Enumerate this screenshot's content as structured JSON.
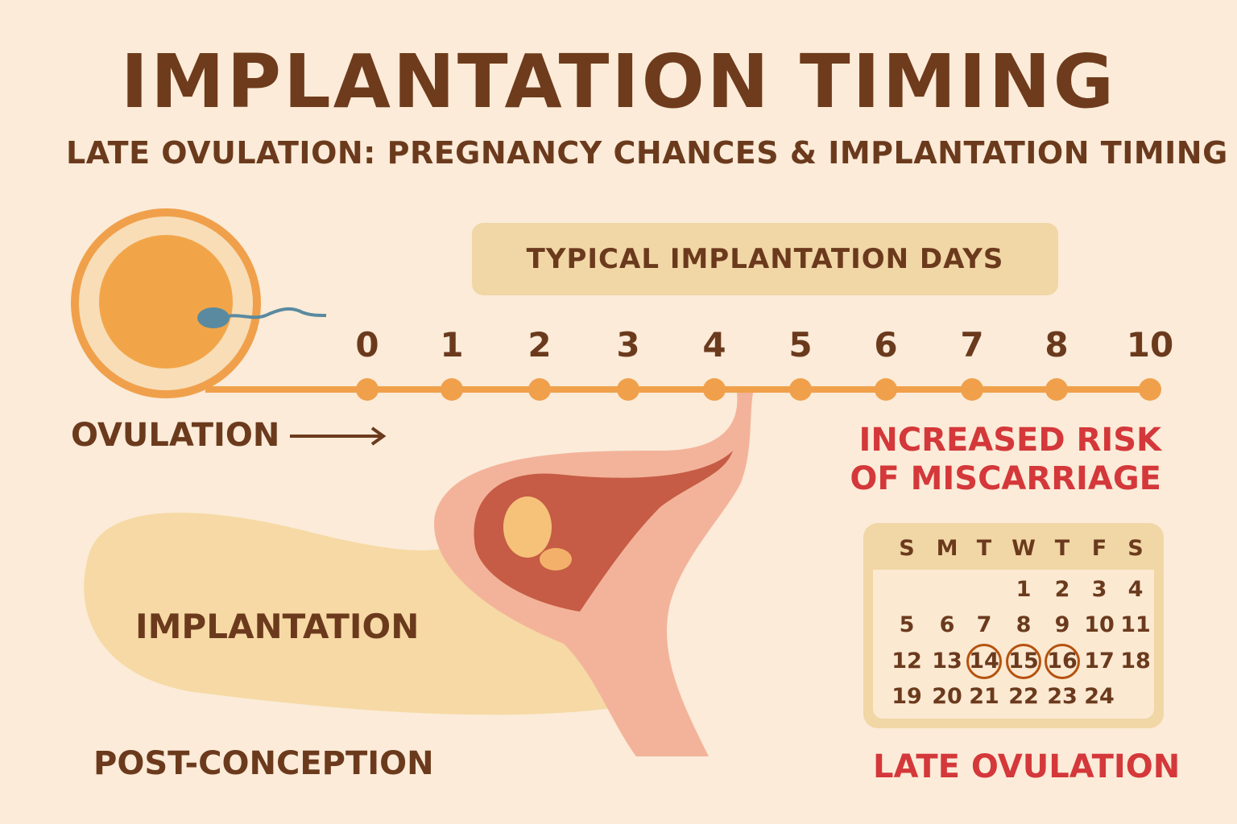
{
  "title": "IMPLANTATION TIMING",
  "subtitle": "LATE OVULATION: PREGNANCY CHANCES & IMPLANTATION TIMING",
  "banner": "TYPICAL IMPLANTATION DAYS",
  "timeline": {
    "ticks": [
      "0",
      "1",
      "2",
      "3",
      "4",
      "5",
      "6",
      "7",
      "8",
      "10"
    ]
  },
  "labels": {
    "ovulation": "OVULATION",
    "implantation": "IMPLANTATION",
    "post_conception": "POST-CONCEPTION",
    "risk_line1": "INCREASED RISK",
    "risk_line2": "OF MISCARRIAGE",
    "late_ovulation": "LATE OVULATION"
  },
  "calendar": {
    "weekdays": [
      "S",
      "M",
      "T",
      "W",
      "T",
      "F",
      "S"
    ],
    "rows": [
      [
        "",
        "",
        "",
        "1",
        "2",
        "3",
        "4"
      ],
      [
        "5",
        "6",
        "7",
        "8",
        "9",
        "10",
        "11"
      ],
      [
        "12",
        "13",
        "14",
        "15",
        "16",
        "17",
        "18"
      ],
      [
        "19",
        "20",
        "21",
        "22",
        "23",
        "24",
        ""
      ]
    ],
    "highlighted": [
      "14",
      "15",
      "16"
    ]
  },
  "colors": {
    "brown": "#6b3a1d",
    "red": "#d4383a",
    "orange": "#f0a04b",
    "sand": "#f1d6a6",
    "background": "#fbebd8"
  },
  "icons": [
    "egg-cell-icon",
    "sperm-icon",
    "arrow-right-icon",
    "uterus-embryo-illustration"
  ]
}
